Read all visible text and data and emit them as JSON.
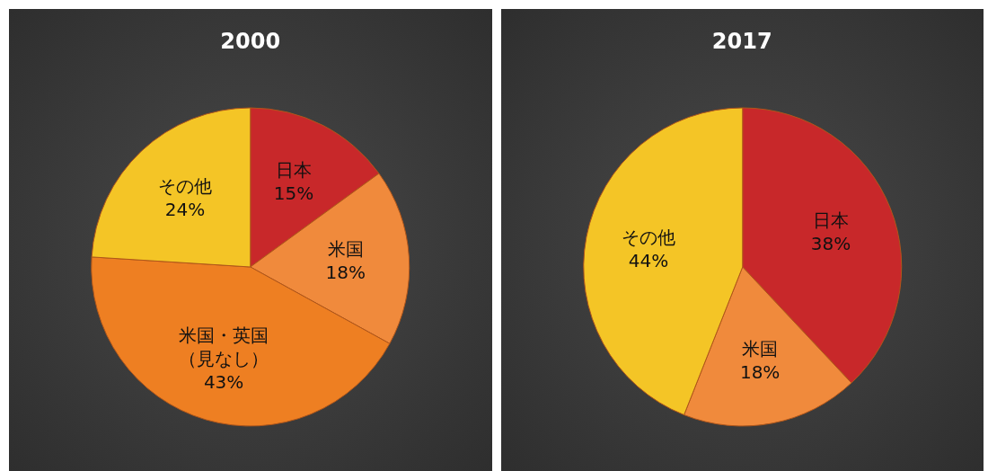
{
  "chart_data": [
    {
      "type": "pie",
      "title": "2000",
      "categories": [
        "日本",
        "米国",
        "米国・英国（見なし）",
        "その他"
      ],
      "values": [
        15,
        18,
        43,
        24
      ],
      "value_labels": [
        "15%",
        "18%",
        "43%",
        "24%"
      ],
      "colors": [
        "#c8282a",
        "#f08a3c",
        "#ee7f22",
        "#f4c526"
      ]
    },
    {
      "type": "pie",
      "title": "2017",
      "categories": [
        "日本",
        "米国",
        "その他"
      ],
      "values": [
        38,
        18,
        44
      ],
      "value_labels": [
        "38%",
        "18%",
        "44%"
      ],
      "colors": [
        "#c8282a",
        "#f08a3c",
        "#f4c526"
      ]
    }
  ]
}
